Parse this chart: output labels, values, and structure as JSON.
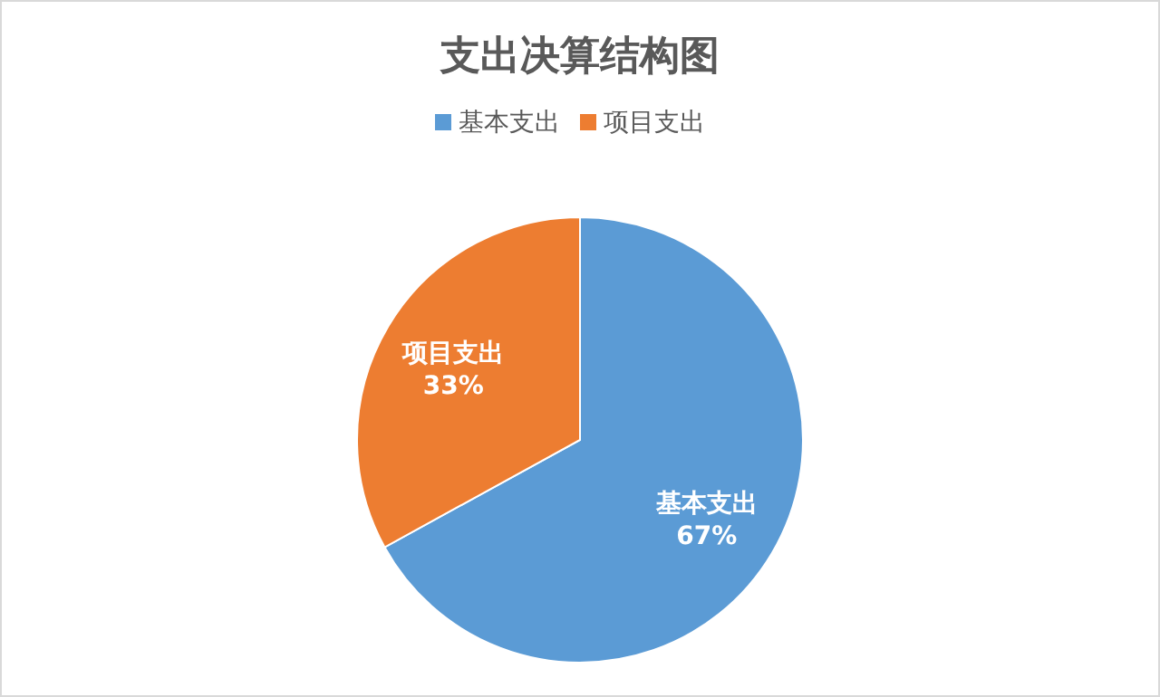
{
  "chart_data": {
    "type": "pie",
    "title": "支出决算结构图",
    "categories": [
      "基本支出",
      "项目支出"
    ],
    "values": [
      67,
      33
    ],
    "value_labels": [
      "67%",
      "33%"
    ],
    "colors": [
      "#5b9bd5",
      "#ed7d31"
    ],
    "legend": "top"
  }
}
